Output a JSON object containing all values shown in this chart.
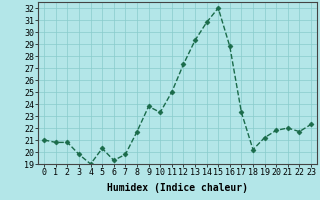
{
  "x": [
    0,
    1,
    2,
    3,
    4,
    5,
    6,
    7,
    8,
    9,
    10,
    11,
    12,
    13,
    14,
    15,
    16,
    17,
    18,
    19,
    20,
    21,
    22,
    23
  ],
  "y": [
    21.0,
    20.8,
    20.8,
    19.8,
    19.0,
    20.3,
    19.3,
    19.8,
    21.7,
    23.8,
    23.3,
    25.0,
    27.3,
    29.3,
    30.8,
    32.0,
    28.8,
    23.3,
    20.2,
    21.2,
    21.8,
    22.0,
    21.7,
    22.3
  ],
  "line_color": "#1a6b4a",
  "marker": "D",
  "marker_size": 2.5,
  "bg_color": "#b3e6e8",
  "grid_color": "#88cccc",
  "xlabel": "Humidex (Indice chaleur)",
  "ylim": [
    19,
    32.5
  ],
  "yticks": [
    19,
    20,
    21,
    22,
    23,
    24,
    25,
    26,
    27,
    28,
    29,
    30,
    31,
    32
  ],
  "xticks": [
    0,
    1,
    2,
    3,
    4,
    5,
    6,
    7,
    8,
    9,
    10,
    11,
    12,
    13,
    14,
    15,
    16,
    17,
    18,
    19,
    20,
    21,
    22,
    23
  ],
  "label_fontsize": 7,
  "tick_fontsize": 6,
  "linewidth": 1.0
}
